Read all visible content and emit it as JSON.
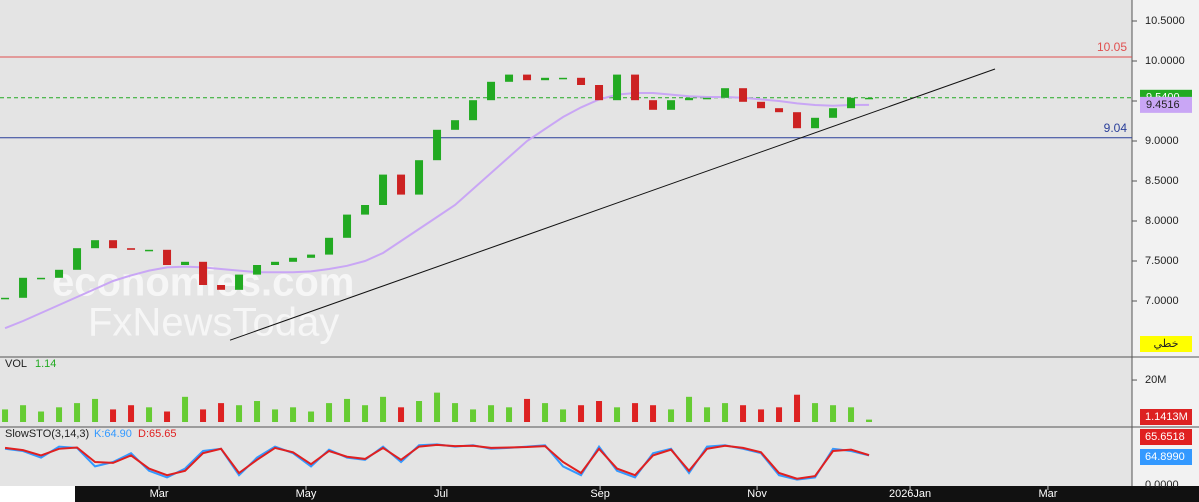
{
  "chart_data": {
    "type": "candlestick",
    "watermark": [
      "economies.com",
      "FxNewsToday"
    ],
    "xlim": [
      -0.28,
      62.61
    ],
    "xticks": [
      {
        "value": 8.56,
        "label": "Mar"
      },
      {
        "value": 16.72,
        "label": "May"
      },
      {
        "value": 24.22,
        "label": "Jul"
      },
      {
        "value": 33.06,
        "label": "Sep"
      },
      {
        "value": 41.78,
        "label": "Nov"
      },
      {
        "value": 50.28,
        "label": "2026Jan"
      },
      {
        "value": 57.94,
        "label": "Mar"
      }
    ],
    "ylim": [
      6.3125,
      10.7625
    ],
    "yticks": [
      {
        "value": 7,
        "label": "7.0000"
      },
      {
        "value": 7.5,
        "label": "7.5000"
      },
      {
        "value": 8,
        "label": "8.0000"
      },
      {
        "value": 8.5,
        "label": "8.5000"
      },
      {
        "value": 9,
        "label": "9.0000"
      },
      {
        "value": 9.5,
        "label": "9.5000"
      },
      {
        "value": 10,
        "label": "10.0000"
      },
      {
        "value": 10.5,
        "label": "10.5000"
      }
    ],
    "close": [
      7.04,
      7.29,
      7.29,
      7.39,
      7.66,
      7.76,
      7.66,
      7.64,
      7.64,
      7.45,
      7.49,
      7.2,
      7.14,
      7.33,
      7.45,
      7.49,
      7.54,
      7.58,
      7.79,
      8.08,
      8.2,
      8.58,
      8.33,
      8.76,
      9.14,
      9.26,
      9.51,
      9.74,
      9.83,
      9.76,
      9.79,
      9.79,
      9.7,
      9.51,
      9.83,
      9.51,
      9.39,
      9.51,
      9.54,
      9.54,
      9.66,
      9.49,
      9.41,
      9.36,
      9.16,
      9.29,
      9.41,
      9.54,
      9.54
    ],
    "up_color": "#22aa22",
    "down_color": "#cc2222",
    "ma": {
      "color": "#c9a6f5",
      "values": [
        6.66,
        6.75,
        6.85,
        6.95,
        7.05,
        7.15,
        7.25,
        7.32,
        7.38,
        7.42,
        7.43,
        7.42,
        7.4,
        7.38,
        7.36,
        7.36,
        7.36,
        7.37,
        7.4,
        7.44,
        7.5,
        7.6,
        7.75,
        7.9,
        8.05,
        8.2,
        8.4,
        8.6,
        8.8,
        9.0,
        9.15,
        9.3,
        9.42,
        9.52,
        9.58,
        9.6,
        9.6,
        9.58,
        9.56,
        9.55,
        9.55,
        9.54,
        9.52,
        9.5,
        9.47,
        9.45,
        9.44,
        9.45,
        9.4516
      ]
    },
    "levels": [
      {
        "value": 10.05,
        "color": "#e05050"
      },
      {
        "value": 9.04,
        "color": "#2a3f9a"
      }
    ],
    "last_price": {
      "value": 9.54,
      "label": "9.5400",
      "color": "#22aa22"
    },
    "trendline": {
      "x": [
        12.5,
        55
      ],
      "y": [
        6.51,
        9.9
      ]
    },
    "tool_label": "خطي",
    "volume": {
      "type": "bar",
      "title": "VOL",
      "current": {
        "value": 1.1413,
        "label": "1.14"
      },
      "current_box": {
        "value": 1.1413,
        "label": "1.1413M"
      },
      "ylim": [
        0,
        30.5
      ],
      "yticks": [
        {
          "value": 20,
          "label": "20M"
        }
      ],
      "values": [
        6,
        8,
        5,
        7,
        9,
        11,
        6,
        8,
        7,
        5,
        12,
        6,
        9,
        8,
        10,
        6,
        7,
        5,
        9,
        11,
        8,
        12,
        7,
        10,
        14,
        9,
        6,
        8,
        7,
        11,
        9,
        6,
        8,
        10,
        7,
        9,
        8,
        6,
        12,
        7,
        9,
        8,
        6,
        7,
        13,
        9,
        8,
        7,
        1.1413
      ]
    },
    "stochastic": {
      "type": "line",
      "title": "SlowSTO(3,14,3)",
      "ylim": [
        0,
        100
      ],
      "yticks": [
        {
          "value": 0,
          "label": "0.0000"
        }
      ],
      "k": {
        "color": "#3399ff",
        "label": {
          "value": 64.899,
          "label": "K:64.90"
        },
        "box": {
          "value": 64.899,
          "label": "64.8990"
        },
        "values": [
          80,
          75,
          60,
          85,
          82,
          40,
          50,
          70,
          30,
          15,
          35,
          75,
          80,
          20,
          60,
          85,
          70,
          40,
          78,
          60,
          55,
          85,
          50,
          88,
          90,
          85,
          88,
          80,
          82,
          85,
          88,
          40,
          20,
          85,
          30,
          15,
          70,
          80,
          25,
          85,
          88,
          80,
          70,
          20,
          10,
          15,
          80,
          75,
          64.899
        ]
      },
      "d": {
        "color": "#e02020",
        "label": {
          "value": 65.6518,
          "label": "D:65.65"
        },
        "values": [
          82,
          77,
          65,
          80,
          83,
          50,
          48,
          65,
          35,
          20,
          30,
          70,
          80,
          25,
          55,
          82,
          72,
          45,
          75,
          62,
          57,
          82,
          55,
          85,
          89,
          86,
          87,
          82,
          83,
          84,
          86,
          50,
          25,
          80,
          35,
          20,
          65,
          78,
          30,
          80,
          87,
          82,
          72,
          25,
          12,
          18,
          75,
          78,
          65.6518
        ]
      }
    }
  }
}
